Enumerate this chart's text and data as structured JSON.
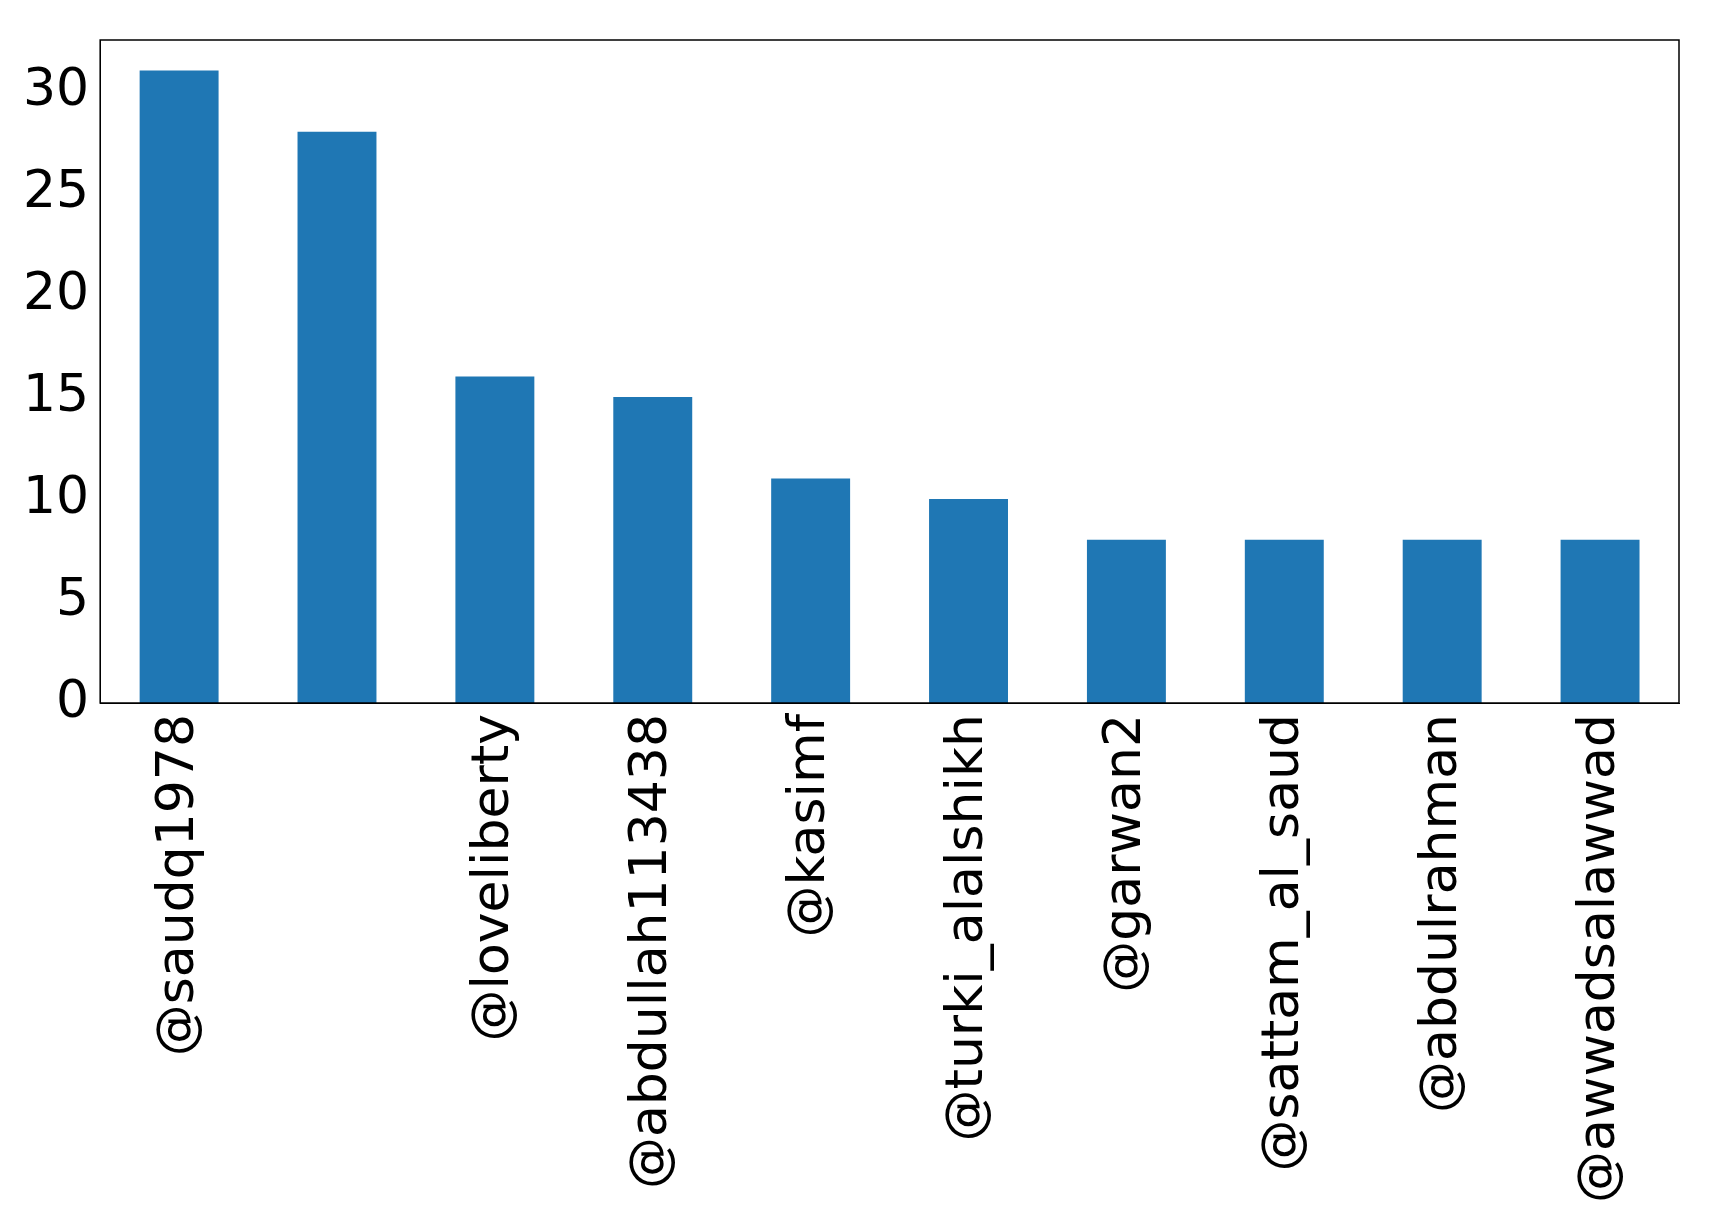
{
  "chart_data": {
    "type": "bar",
    "categories": [
      "@saudq1978",
      null,
      "@loveliberty",
      "@abdullah113438",
      "@kasimf",
      "@turki_alalshikh",
      "@garwan2",
      "@sattam_al_saud",
      "@abdulrahman",
      "@awwadsalawwad"
    ],
    "values": [
      31,
      28,
      16,
      15,
      11,
      10,
      8,
      8,
      8,
      8
    ],
    "color": "#1f77b4",
    "ylim": [
      0,
      32.5
    ],
    "yticks": [
      0,
      5,
      10,
      15,
      20,
      25,
      30
    ],
    "grid": false,
    "legend": false
  }
}
